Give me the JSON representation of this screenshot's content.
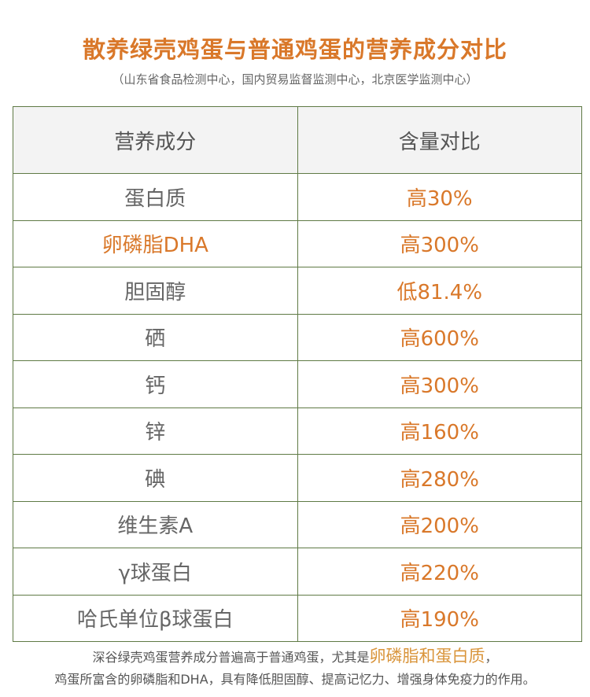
{
  "title": "散养绿壳鸡蛋与普通鸡蛋的营养成分对比",
  "subtitle": "（山东省食品检测中心，国内贸易监督监测中心，北京医学监测中心）",
  "table": {
    "headers": [
      "营养成分",
      "含量对比"
    ],
    "rows": [
      {
        "name": "蛋白质",
        "value": "高30%"
      },
      {
        "name": "卵磷脂DHA",
        "value": "高300%",
        "highlight": true
      },
      {
        "name": "胆固醇",
        "value": "低81.4%"
      },
      {
        "name": "硒",
        "value": "高600%"
      },
      {
        "name": "钙",
        "value": "高300%"
      },
      {
        "name": "锌",
        "value": "高160%"
      },
      {
        "name": "碘",
        "value": "高280%"
      },
      {
        "name": "维生素A",
        "value": "高200%"
      },
      {
        "name": "γ球蛋白",
        "value": "高220%"
      },
      {
        "name": "哈氏单位β球蛋白",
        "value": "高190%"
      }
    ]
  },
  "note": {
    "line1_pre": "深谷绿壳鸡蛋营养成分普遍高于普通鸡蛋，尤其是",
    "line1_highlight": "卵磷脂和蛋白质",
    "line1_post": "，",
    "line2": "鸡蛋所富含的卵磷脂和DHA，具有降低胆固醇、提高记忆力、增强身体免疫力的作用。"
  },
  "colors": {
    "accent": "#d9782a",
    "border": "#5f7a45",
    "header_bg": "#f3f3f3"
  }
}
